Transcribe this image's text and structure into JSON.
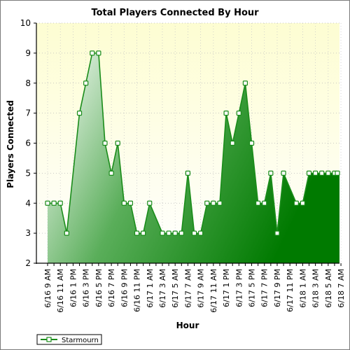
{
  "chart_data": {
    "type": "area",
    "title": "Total Players Connected By Hour",
    "xlabel": "Hour",
    "ylabel": "Players Connected",
    "ylim": [
      2,
      10
    ],
    "yticks": [
      2,
      3,
      4,
      5,
      6,
      7,
      8,
      9,
      10
    ],
    "grid": true,
    "legend_position": "bottom-left",
    "x": [
      "6/16 9 AM",
      "6/16 10 AM",
      "6/16 11 AM",
      "6/16 12 PM",
      "6/16 1 PM",
      "6/16 2 PM",
      "6/16 3 PM",
      "6/16 4 PM",
      "6/16 5 PM",
      "6/16 6 PM",
      "6/16 7 PM",
      "6/16 8 PM",
      "6/16 9 PM",
      "6/16 10 PM",
      "6/16 11 PM",
      "6/17 12 AM",
      "6/17 1 AM",
      "6/17 2 AM",
      "6/17 3 AM",
      "6/17 4 AM",
      "6/17 5 AM",
      "6/17 6 AM",
      "6/17 7 AM",
      "6/17 8 AM",
      "6/17 9 AM",
      "6/17 10 AM",
      "6/17 11 AM",
      "6/17 12 PM",
      "6/17 1 PM",
      "6/17 2 PM",
      "6/17 3 PM",
      "6/17 4 PM",
      "6/17 5 PM",
      "6/17 6 PM",
      "6/17 7 PM",
      "6/17 8 PM",
      "6/17 9 PM",
      "6/17 10 PM",
      "6/17 11 PM",
      "6/18 12 AM",
      "6/18 1 AM",
      "6/18 2 AM",
      "6/18 3 AM",
      "6/18 4 AM",
      "6/18 5 AM",
      "6/18 6 AM",
      "6/18 7 AM"
    ],
    "xtick_labels": [
      "6/16 9 AM",
      "6/16 11 AM",
      "6/16 1 PM",
      "6/16 3 PM",
      "6/16 5 PM",
      "6/16 7 PM",
      "6/16 9 PM",
      "6/16 11 PM",
      "6/17 1 AM",
      "6/17 3 AM",
      "6/17 5 AM",
      "6/17 7 AM",
      "6/17 9 AM",
      "6/17 11 AM",
      "6/17 1 PM",
      "6/17 3 PM",
      "6/17 5 PM",
      "6/17 7 PM",
      "6/17 9 PM",
      "6/17 11 PM",
      "6/18 1 AM",
      "6/18 3 AM",
      "6/18 5 AM",
      "6/18 7 AM"
    ],
    "series": [
      {
        "name": "Starmourn",
        "color": "#1a8c1a",
        "values": [
          4,
          4,
          4,
          3,
          null,
          7,
          8,
          9,
          9,
          6,
          5,
          6,
          4,
          4,
          3,
          3,
          4,
          null,
          3,
          3,
          3,
          3,
          5,
          3,
          3,
          4,
          4,
          4,
          7,
          6,
          7,
          8,
          6,
          4,
          4,
          5,
          3,
          5,
          null,
          4,
          4,
          5,
          5,
          5,
          5,
          null,
          null
        ],
        "plotted_values": [
          4,
          4,
          4,
          3,
          5,
          7,
          8,
          9,
          9,
          6,
          5,
          6,
          4,
          4,
          3,
          3,
          4,
          3.5,
          3,
          3,
          3,
          3,
          5,
          3,
          3,
          4,
          4,
          4,
          7,
          6,
          7,
          8,
          6,
          4,
          4,
          5,
          3,
          5,
          4.5,
          4,
          4,
          5,
          5,
          5,
          5,
          null,
          null
        ]
      }
    ]
  }
}
